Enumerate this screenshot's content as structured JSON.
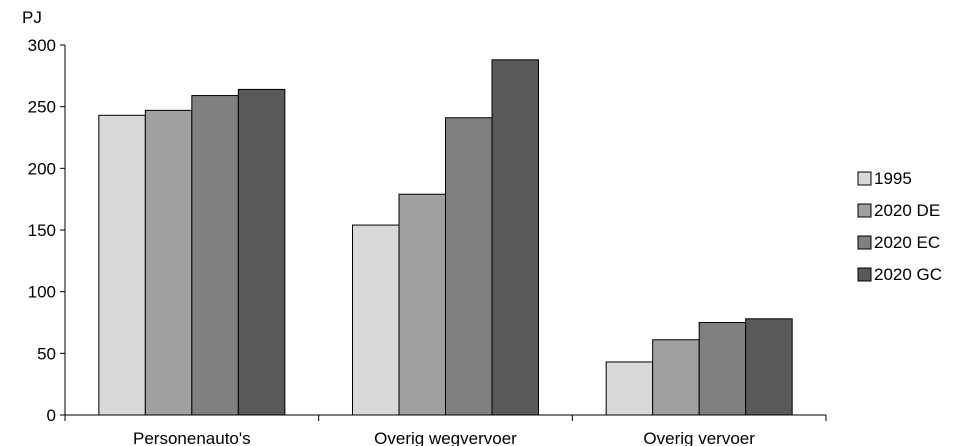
{
  "chart_data": {
    "type": "bar",
    "ylabel": "PJ",
    "ylim": [
      0,
      300
    ],
    "yticks": [
      0,
      50,
      100,
      150,
      200,
      250,
      300
    ],
    "categories": [
      "Personenauto's",
      "Overig wegvervoer",
      "Overig vervoer"
    ],
    "series": [
      {
        "name": "1995",
        "color": "#d9d9d9",
        "values": [
          243,
          154,
          43
        ]
      },
      {
        "name": "2020 DE",
        "color": "#a0a0a0",
        "values": [
          247,
          179,
          61
        ]
      },
      {
        "name": "2020 EC",
        "color": "#808080",
        "values": [
          259,
          241,
          75
        ]
      },
      {
        "name": "2020 GC",
        "color": "#595959",
        "values": [
          264,
          288,
          78
        ]
      }
    ],
    "legend_position": "right",
    "grid": false
  }
}
